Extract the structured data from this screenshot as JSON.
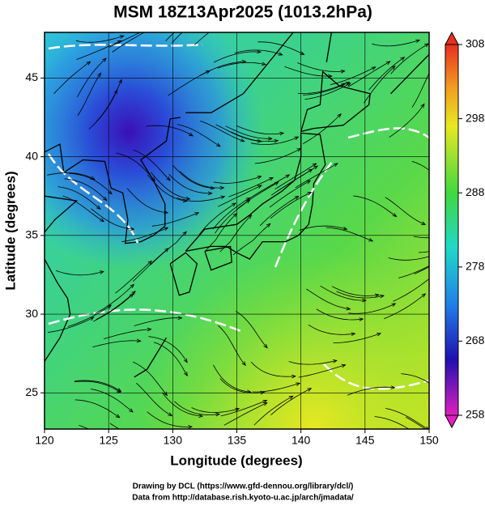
{
  "title": "MSM 18Z13Apr2025 (1013.2hPa)",
  "x_axis": {
    "label": "Longitude (degrees)",
    "range": [
      120,
      150
    ],
    "ticks": [
      120,
      125,
      130,
      135,
      140,
      145,
      150
    ]
  },
  "y_axis": {
    "label": "Latitude  (degrees)",
    "range": [
      22.7,
      47.9
    ],
    "ticks": [
      25,
      30,
      35,
      40,
      45
    ]
  },
  "colorbar": {
    "range": [
      258,
      308
    ],
    "ticks": [
      258,
      268,
      278,
      288,
      298,
      308
    ]
  },
  "footer": [
    "Drawing by DCL (https://www.gfd-dennou.org/library/dcl/)",
    "Data from http://database.rish.kyoto-u.ac.jp/arch/jmadata/"
  ]
}
